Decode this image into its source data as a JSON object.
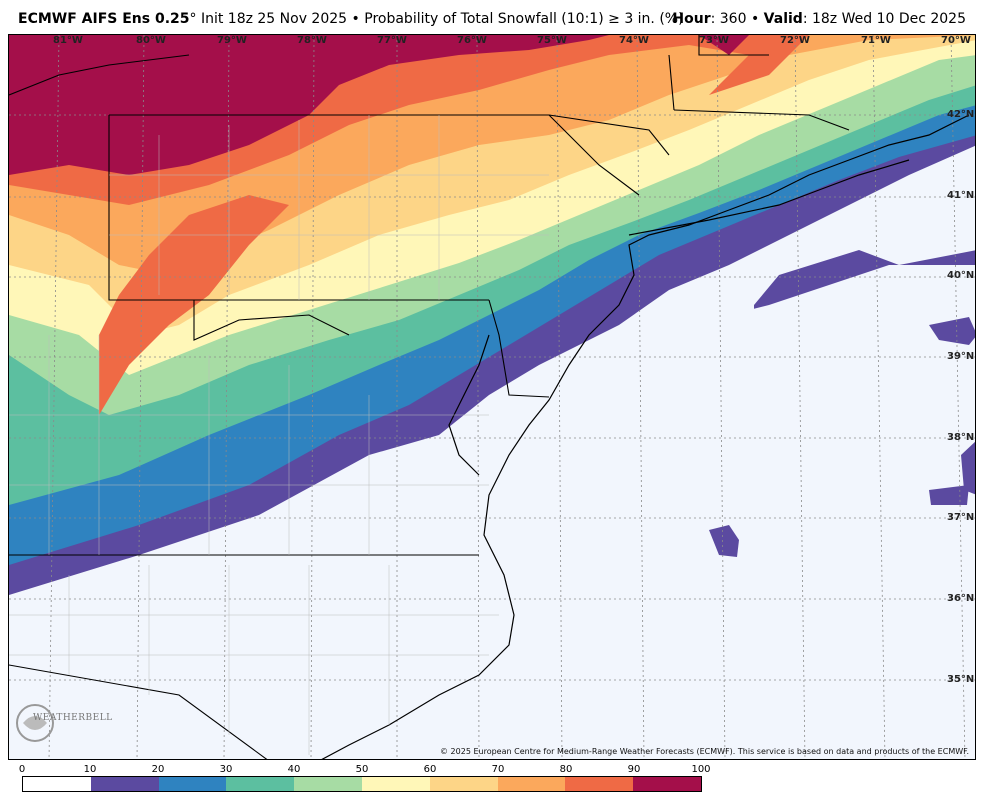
{
  "header": {
    "model": "ECMWF AIFS Ens 0.25",
    "degree": "°",
    "init": "Init 18z 25 Nov 2025",
    "bullet": "•",
    "product": "Probability of Total Snowfall (10:1)",
    "ge": "≥",
    "threshold": "3 in. (%)",
    "hour_label": "Hour",
    "hour_value": ": 360",
    "valid_label": "Valid",
    "valid_value": ": 18z Wed 10 Dec 2025"
  },
  "map": {
    "longitudes": [
      "81°W",
      "80°W",
      "79°W",
      "78°W",
      "77°W",
      "76°W",
      "75°W",
      "74°W",
      "73°W",
      "72°W",
      "71°W",
      "70°W"
    ],
    "latitudes": [
      "42°N",
      "41°N",
      "40°N",
      "39°N",
      "38°N",
      "37°N",
      "36°N",
      "35°N"
    ],
    "copyright": "© 2025 European Centre for Medium-Range Weather Forecasts (ECMWF). This service is based on data and products of the ECMWF.",
    "logo_text": "WEATHERBELL"
  },
  "legend": {
    "ticks": [
      "0",
      "10",
      "20",
      "30",
      "40",
      "50",
      "60",
      "70",
      "80",
      "90",
      "100"
    ],
    "colors": [
      "#ffffff",
      "#5b4aa0",
      "#2f83c0",
      "#5cbfa0",
      "#a7dca4",
      "#fff7b8",
      "#fdd587",
      "#fba85c",
      "#ef6a45",
      "#a40f4a"
    ]
  },
  "colors": {
    "ocean_background": "#f2f6fd",
    "border": "#000000"
  }
}
